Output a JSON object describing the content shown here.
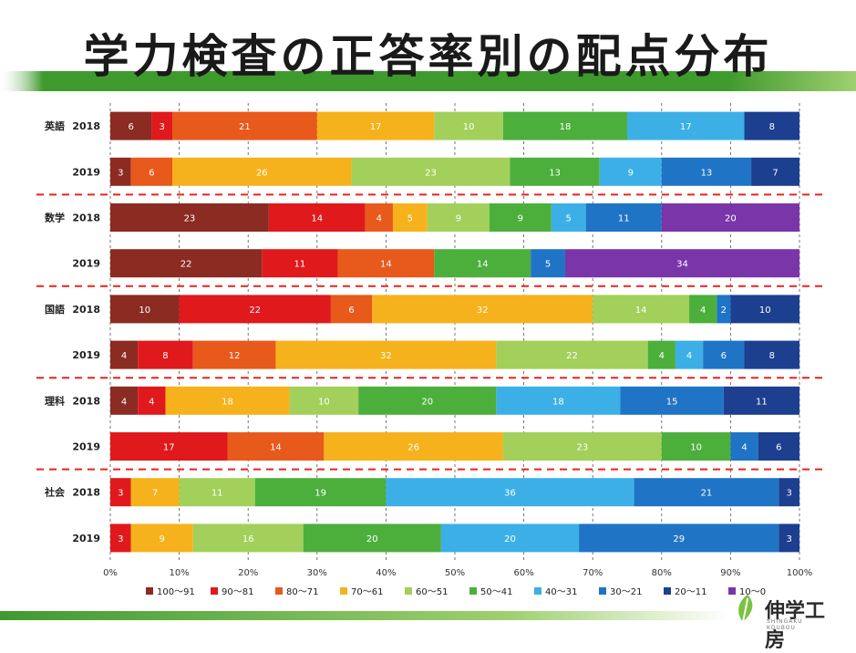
{
  "slide": {
    "title": "学力検査の正答率別の配点分布",
    "logo_text": "伸学工房",
    "logo_subtext": "SHINGAKU KOUBOU"
  },
  "colors": {
    "title_band": "#3f9a2e",
    "band_light": "#9fd070",
    "divider": "#e8231f"
  },
  "chart_data": {
    "type": "bar",
    "orientation": "horizontal",
    "stacked": "percent",
    "title": "学力検査の正答率別の配点分布",
    "xlabel": "",
    "ylabel": "",
    "xlim": [
      0,
      100
    ],
    "x_ticks": [
      "0%",
      "10%",
      "20%",
      "30%",
      "40%",
      "50%",
      "60%",
      "70%",
      "80%",
      "90%",
      "100%"
    ],
    "legend_position": "bottom",
    "categories": [
      {
        "subject": "英語",
        "year": "2018"
      },
      {
        "subject": "",
        "year": "2019"
      },
      {
        "subject": "数学",
        "year": "2018"
      },
      {
        "subject": "",
        "year": "2019"
      },
      {
        "subject": "国語",
        "year": "2018"
      },
      {
        "subject": "",
        "year": "2019"
      },
      {
        "subject": "理科",
        "year": "2018"
      },
      {
        "subject": "",
        "year": "2019"
      },
      {
        "subject": "社会",
        "year": "2018"
      },
      {
        "subject": "",
        "year": "2019"
      }
    ],
    "series": [
      {
        "name": "100～91",
        "color": "#8b2b22",
        "values": [
          6,
          3,
          23,
          22,
          10,
          4,
          4,
          0,
          0,
          0
        ]
      },
      {
        "name": "90～81",
        "color": "#e0191c",
        "values": [
          3,
          0,
          14,
          11,
          22,
          8,
          4,
          17,
          3,
          3
        ]
      },
      {
        "name": "80～71",
        "color": "#e8591c",
        "values": [
          21,
          6,
          4,
          14,
          6,
          12,
          0,
          14,
          0,
          0
        ]
      },
      {
        "name": "70～61",
        "color": "#f6b21c",
        "values": [
          17,
          26,
          5,
          0,
          32,
          32,
          18,
          26,
          7,
          9
        ]
      },
      {
        "name": "60～51",
        "color": "#a2d05a",
        "values": [
          10,
          23,
          9,
          0,
          14,
          22,
          10,
          23,
          11,
          16
        ]
      },
      {
        "name": "50～41",
        "color": "#4caf3c",
        "values": [
          18,
          13,
          9,
          14,
          4,
          4,
          20,
          10,
          19,
          20
        ]
      },
      {
        "name": "40～31",
        "color": "#3cb0e6",
        "values": [
          17,
          9,
          5,
          0,
          0,
          4,
          18,
          0,
          36,
          20
        ]
      },
      {
        "name": "30～21",
        "color": "#1f74c6",
        "values": [
          0,
          13,
          11,
          5,
          2,
          6,
          15,
          4,
          21,
          29
        ]
      },
      {
        "name": "20～11",
        "color": "#1c3f8f",
        "values": [
          8,
          7,
          0,
          0,
          10,
          8,
          11,
          6,
          3,
          3
        ]
      },
      {
        "name": "10～0",
        "color": "#7a35a8",
        "values": [
          0,
          0,
          20,
          34,
          0,
          0,
          0,
          0,
          0,
          0
        ]
      }
    ]
  }
}
